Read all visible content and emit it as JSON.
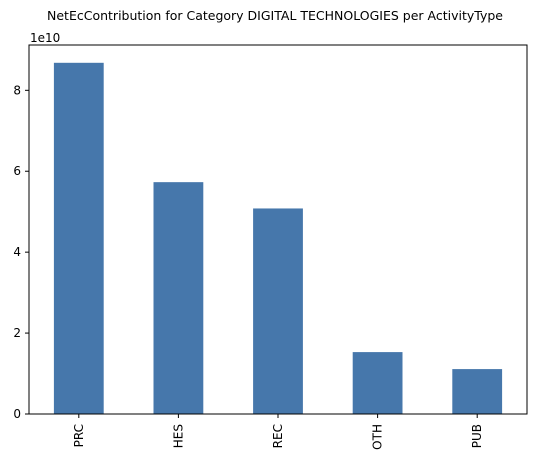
{
  "chart_data": {
    "type": "bar",
    "title": "NetEcContribution for Category DIGITAL TECHNOLOGIES per ActivityType",
    "xlabel": "",
    "ylabel": "",
    "y_offset_label": "1e10",
    "categories": [
      "PRC",
      "HES",
      "REC",
      "OTH",
      "PUB"
    ],
    "values": [
      86800000000.0,
      57300000000.0,
      50800000000.0,
      15300000000.0,
      11100000000.0
    ],
    "ylim": [
      0,
      91200000000.0
    ],
    "yticks": [
      0,
      20000000000.0,
      40000000000.0,
      60000000000.0,
      80000000000.0
    ],
    "ytick_labels": [
      "0",
      "2",
      "4",
      "6",
      "8"
    ],
    "grid": false,
    "legend": "none",
    "bar_color": "#4677ab"
  }
}
